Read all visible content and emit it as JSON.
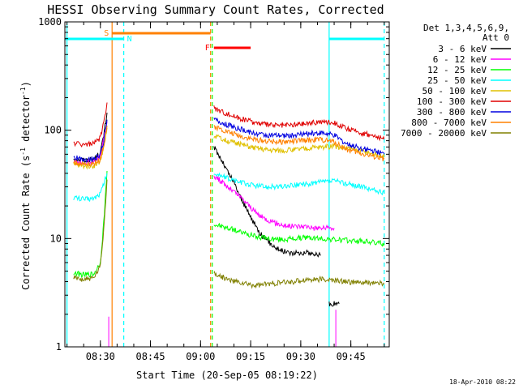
{
  "chart_data": {
    "type": "line",
    "title": "HESSI Observing Summary Count Rates, Corrected",
    "xlabel": "Start Time (20-Sep-05 08:19:22)",
    "ylabel": "Corrected Count Rate (s",
    "ylabel_unit": "detector",
    "ylabel_exp": "-1",
    "y_scale": "log",
    "ylim": [
      1,
      1000
    ],
    "xlim": [
      "08:19:22",
      "09:56:30"
    ],
    "x_ticks": [
      "08:30",
      "08:45",
      "09:00",
      "09:15",
      "09:30",
      "09:45"
    ],
    "y_ticks": [
      "1",
      "10",
      "100",
      "1000"
    ],
    "date_stamp": "18-Apr-2010 08:22",
    "legend": {
      "placement": "right",
      "header_line1": "Det 1,3,4,5,6,9,",
      "header_line2": "Att 0"
    },
    "flags": {
      "saa": {
        "label": "S",
        "start": "08:33:30",
        "end": "09:03:00",
        "color": "#ff8000"
      },
      "night": {
        "label": "N",
        "color": "#00ffff",
        "intervals": [
          [
            "08:19:22",
            "08:37:00"
          ],
          [
            "09:38:30",
            "09:55:00"
          ]
        ]
      },
      "flare": {
        "label": "F",
        "start": "09:04:00",
        "end": "09:15:00",
        "color": "#ff0000"
      }
    },
    "markers": [
      {
        "time": "08:33:30",
        "color": "#ff8000",
        "style": "solid"
      },
      {
        "time": "08:37:00",
        "color": "#00ffff",
        "style": "dashed"
      },
      {
        "time": "09:03:00",
        "color": "#ff8000",
        "style": "dashed"
      },
      {
        "time": "09:03:30",
        "color": "#00ff00",
        "style": "dashed"
      },
      {
        "time": "09:38:30",
        "color": "#00ffff",
        "style": "solid"
      },
      {
        "time": "09:55:00",
        "color": "#00ffff",
        "style": "dashed"
      },
      {
        "time": "08:20:00",
        "color": "#00ffff",
        "style": "solid"
      }
    ],
    "series": [
      {
        "name": "3 - 6 keV",
        "color": "#000000",
        "segments": [
          [
            [
              "08:22:00",
              55
            ],
            [
              "08:25:00",
              53
            ],
            [
              "08:28:00",
              54
            ],
            [
              "08:30:00",
              62
            ],
            [
              "08:31:00",
              90
            ],
            [
              "08:32:00",
              145
            ]
          ],
          [
            [
              "09:04:00",
              70
            ],
            [
              "09:06:00",
              55
            ],
            [
              "09:08:00",
              42
            ],
            [
              "09:10:00",
              33
            ],
            [
              "09:12:00",
              24
            ],
            [
              "09:14:00",
              18
            ],
            [
              "09:16:00",
              14
            ],
            [
              "09:18:00",
              11
            ],
            [
              "09:20:00",
              9.5
            ],
            [
              "09:22:00",
              8.5
            ],
            [
              "09:24:00",
              7.8
            ],
            [
              "09:26:00",
              7.5
            ],
            [
              "09:28:00",
              7.3
            ],
            [
              "09:30:00",
              7.4
            ],
            [
              "09:32:00",
              7.4
            ],
            [
              "09:34:00",
              7.2
            ],
            [
              "09:36:00",
              7.0
            ]
          ],
          [
            [
              "09:38:30",
              2.5
            ],
            [
              "09:40:00",
              2.5
            ],
            [
              "09:41:30",
              2.5
            ]
          ]
        ]
      },
      {
        "name": "6 - 12 keV",
        "color": "#ff00ff",
        "segments": [
          [
            [
              "08:22:00",
              52
            ],
            [
              "08:25:00",
              50
            ],
            [
              "08:28:00",
              51
            ],
            [
              "08:30:00",
              58
            ],
            [
              "08:31:00",
              85
            ],
            [
              "08:32:00",
              120
            ]
          ],
          [
            [
              "09:04:00",
              38
            ],
            [
              "09:06:00",
              34
            ],
            [
              "09:08:00",
              30
            ],
            [
              "09:10:00",
              27
            ],
            [
              "09:12:00",
              24
            ],
            [
              "09:14:00",
              21
            ],
            [
              "09:16:00",
              18
            ],
            [
              "09:18:00",
              16
            ],
            [
              "09:20:00",
              15
            ],
            [
              "09:22:00",
              14
            ],
            [
              "09:24:00",
              13.5
            ],
            [
              "09:26:00",
              13
            ],
            [
              "09:28:00",
              13
            ],
            [
              "09:30:00",
              13
            ],
            [
              "09:32:00",
              13
            ],
            [
              "09:34:00",
              12.5
            ],
            [
              "09:36:00",
              12.5
            ],
            [
              "09:40:00",
              12.5
            ]
          ]
        ]
      },
      {
        "name": "12 - 25 keV",
        "color": "#00ff00",
        "segments": [
          [
            [
              "08:22:00",
              4.8
            ],
            [
              "08:25:00",
              4.6
            ],
            [
              "08:28:00",
              4.7
            ],
            [
              "08:30:00",
              6
            ],
            [
              "08:31:00",
              14
            ],
            [
              "08:32:00",
              42
            ]
          ],
          [
            [
              "09:04:00",
              13.5
            ],
            [
              "09:08:00",
              12.5
            ],
            [
              "09:12:00",
              11.5
            ],
            [
              "09:16:00",
              10.5
            ],
            [
              "09:20:00",
              10
            ],
            [
              "09:24:00",
              9.8
            ],
            [
              "09:28:00",
              10
            ],
            [
              "09:32:00",
              10.2
            ],
            [
              "09:36:00",
              10
            ],
            [
              "09:40:00",
              9.8
            ],
            [
              "09:44:00",
              9.6
            ],
            [
              "09:48:00",
              9.5
            ],
            [
              "09:52:00",
              9.2
            ],
            [
              "09:55:00",
              9
            ]
          ]
        ]
      },
      {
        "name": "25 - 50 keV",
        "color": "#00ffff",
        "segments": [
          [
            [
              "08:22:00",
              24
            ],
            [
              "08:25:00",
              23
            ],
            [
              "08:28:00",
              23.5
            ],
            [
              "08:30:00",
              26
            ],
            [
              "08:31:00",
              32
            ],
            [
              "08:32:00",
              40
            ]
          ],
          [
            [
              "09:04:00",
              40
            ],
            [
              "09:08:00",
              36
            ],
            [
              "09:12:00",
              33
            ],
            [
              "09:16:00",
              31
            ],
            [
              "09:20:00",
              30
            ],
            [
              "09:24:00",
              30
            ],
            [
              "09:28:00",
              31
            ],
            [
              "09:32:00",
              32
            ],
            [
              "09:36:00",
              33
            ],
            [
              "09:40:00",
              34
            ],
            [
              "09:44:00",
              32
            ],
            [
              "09:48:00",
              30
            ],
            [
              "09:52:00",
              28
            ],
            [
              "09:55:00",
              26
            ]
          ]
        ]
      },
      {
        "name": "50 - 100 keV",
        "color": "#e0c000",
        "segments": [
          [
            [
              "08:22:00",
              48
            ],
            [
              "08:25:00",
              47
            ],
            [
              "08:28:00",
              47
            ],
            [
              "08:30:00",
              52
            ],
            [
              "08:31:00",
              70
            ],
            [
              "08:32:00",
              105
            ]
          ],
          [
            [
              "09:04:00",
              88
            ],
            [
              "09:08:00",
              80
            ],
            [
              "09:12:00",
              74
            ],
            [
              "09:16:00",
              69
            ],
            [
              "09:20:00",
              66
            ],
            [
              "09:24:00",
              65
            ],
            [
              "09:28:00",
              66
            ],
            [
              "09:32:00",
              68
            ],
            [
              "09:36:00",
              70
            ],
            [
              "09:40:00",
              71
            ],
            [
              "09:44:00",
              68
            ],
            [
              "09:48:00",
              64
            ],
            [
              "09:52:00",
              60
            ],
            [
              "09:55:00",
              57
            ]
          ]
        ]
      },
      {
        "name": "100 - 300 keV",
        "color": "#e00000",
        "segments": [
          [
            [
              "08:22:00",
              76
            ],
            [
              "08:25:00",
              74
            ],
            [
              "08:28:00",
              75
            ],
            [
              "08:30:00",
              85
            ],
            [
              "08:31:00",
              115
            ],
            [
              "08:32:00",
              180
            ]
          ],
          [
            [
              "09:04:00",
              160
            ],
            [
              "09:08:00",
              142
            ],
            [
              "09:12:00",
              128
            ],
            [
              "09:16:00",
              118
            ],
            [
              "09:20:00",
              112
            ],
            [
              "09:24:00",
              110
            ],
            [
              "09:28:00",
              112
            ],
            [
              "09:32:00",
              116
            ],
            [
              "09:36:00",
              120
            ],
            [
              "09:40:00",
              118
            ],
            [
              "09:44:00",
              102
            ],
            [
              "09:48:00",
              95
            ],
            [
              "09:52:00",
              88
            ],
            [
              "09:55:00",
              83
            ]
          ]
        ]
      },
      {
        "name": "300 - 800 keV",
        "color": "#0000e0",
        "segments": [
          [
            [
              "08:22:00",
              56
            ],
            [
              "08:25:00",
              54
            ],
            [
              "08:28:00",
              54
            ],
            [
              "08:30:00",
              60
            ],
            [
              "08:31:00",
              80
            ],
            [
              "08:32:00",
              125
            ]
          ],
          [
            [
              "09:04:00",
              125
            ],
            [
              "09:08:00",
              112
            ],
            [
              "09:12:00",
              102
            ],
            [
              "09:16:00",
              94
            ],
            [
              "09:20:00",
              90
            ],
            [
              "09:24:00",
              89
            ],
            [
              "09:28:00",
              90
            ],
            [
              "09:32:00",
              93
            ],
            [
              "09:36:00",
              95
            ],
            [
              "09:40:00",
              90
            ],
            [
              "09:44:00",
              74
            ],
            [
              "09:48:00",
              68
            ],
            [
              "09:52:00",
              64
            ],
            [
              "09:55:00",
              60
            ]
          ]
        ]
      },
      {
        "name": "800 - 7000 keV",
        "color": "#ff8000",
        "segments": [
          [
            [
              "08:22:00",
              50
            ],
            [
              "08:25:00",
              49
            ],
            [
              "08:28:00",
              49
            ],
            [
              "08:30:00",
              54
            ],
            [
              "08:31:00",
              72
            ],
            [
              "08:32:00",
              110
            ]
          ],
          [
            [
              "09:04:00",
              108
            ],
            [
              "09:08:00",
              97
            ],
            [
              "09:12:00",
              88
            ],
            [
              "09:16:00",
              82
            ],
            [
              "09:20:00",
              79
            ],
            [
              "09:24:00",
              78
            ],
            [
              "09:28:00",
              79
            ],
            [
              "09:32:00",
              81
            ],
            [
              "09:36:00",
              82
            ],
            [
              "09:40:00",
              78
            ],
            [
              "09:44:00",
              66
            ],
            [
              "09:48:00",
              61
            ],
            [
              "09:52:00",
              57
            ],
            [
              "09:55:00",
              54
            ]
          ]
        ]
      },
      {
        "name": "7000 - 20000 keV",
        "color": "#808000",
        "segments": [
          [
            [
              "08:22:00",
              4.3
            ],
            [
              "08:25:00",
              4.2
            ],
            [
              "08:28:00",
              4.3
            ],
            [
              "08:30:00",
              5.5
            ],
            [
              "08:31:00",
              12
            ],
            [
              "08:32:00",
              35
            ]
          ],
          [
            [
              "09:04:00",
              4.8
            ],
            [
              "09:08:00",
              4.2
            ],
            [
              "09:12:00",
              3.9
            ],
            [
              "09:16:00",
              3.7
            ],
            [
              "09:20:00",
              3.8
            ],
            [
              "09:24:00",
              3.9
            ],
            [
              "09:28:00",
              4
            ],
            [
              "09:32:00",
              4.2
            ],
            [
              "09:36:00",
              4.2
            ],
            [
              "09:40:00",
              4.1
            ],
            [
              "09:44:00",
              4
            ],
            [
              "09:48:00",
              3.9
            ],
            [
              "09:52:00",
              3.9
            ],
            [
              "09:55:00",
              3.8
            ]
          ]
        ]
      }
    ]
  }
}
